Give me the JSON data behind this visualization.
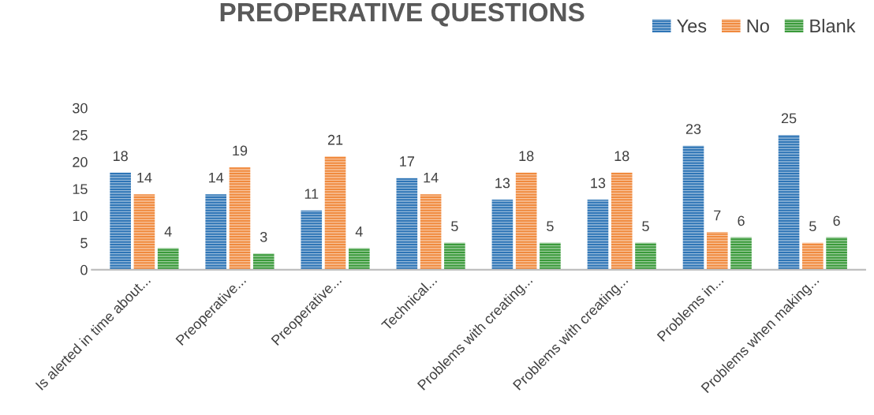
{
  "chart_data": {
    "type": "bar",
    "title": "PREOPERATIVE QUESTIONS",
    "categories": [
      "Is alerted in time about...",
      "Preoperative...",
      "Preoperative...",
      "Technical...",
      "Problems with creating...",
      "Problems with creating...",
      "Problems in...",
      "Problems when making..."
    ],
    "series": [
      {
        "name": "Yes",
        "color": "#2e75b6",
        "values": [
          18,
          14,
          11,
          17,
          13,
          13,
          23,
          25
        ]
      },
      {
        "name": "No",
        "color": "#f08a3e",
        "values": [
          14,
          19,
          21,
          14,
          18,
          18,
          7,
          5
        ]
      },
      {
        "name": "Blank",
        "color": "#3a9a3a",
        "values": [
          4,
          3,
          4,
          5,
          5,
          5,
          6,
          6
        ]
      }
    ],
    "ylim": [
      0,
      30
    ],
    "yticks": [
      0,
      5,
      10,
      15,
      20,
      25,
      30
    ],
    "data_labels": true,
    "grid": false,
    "legend": "top right"
  }
}
